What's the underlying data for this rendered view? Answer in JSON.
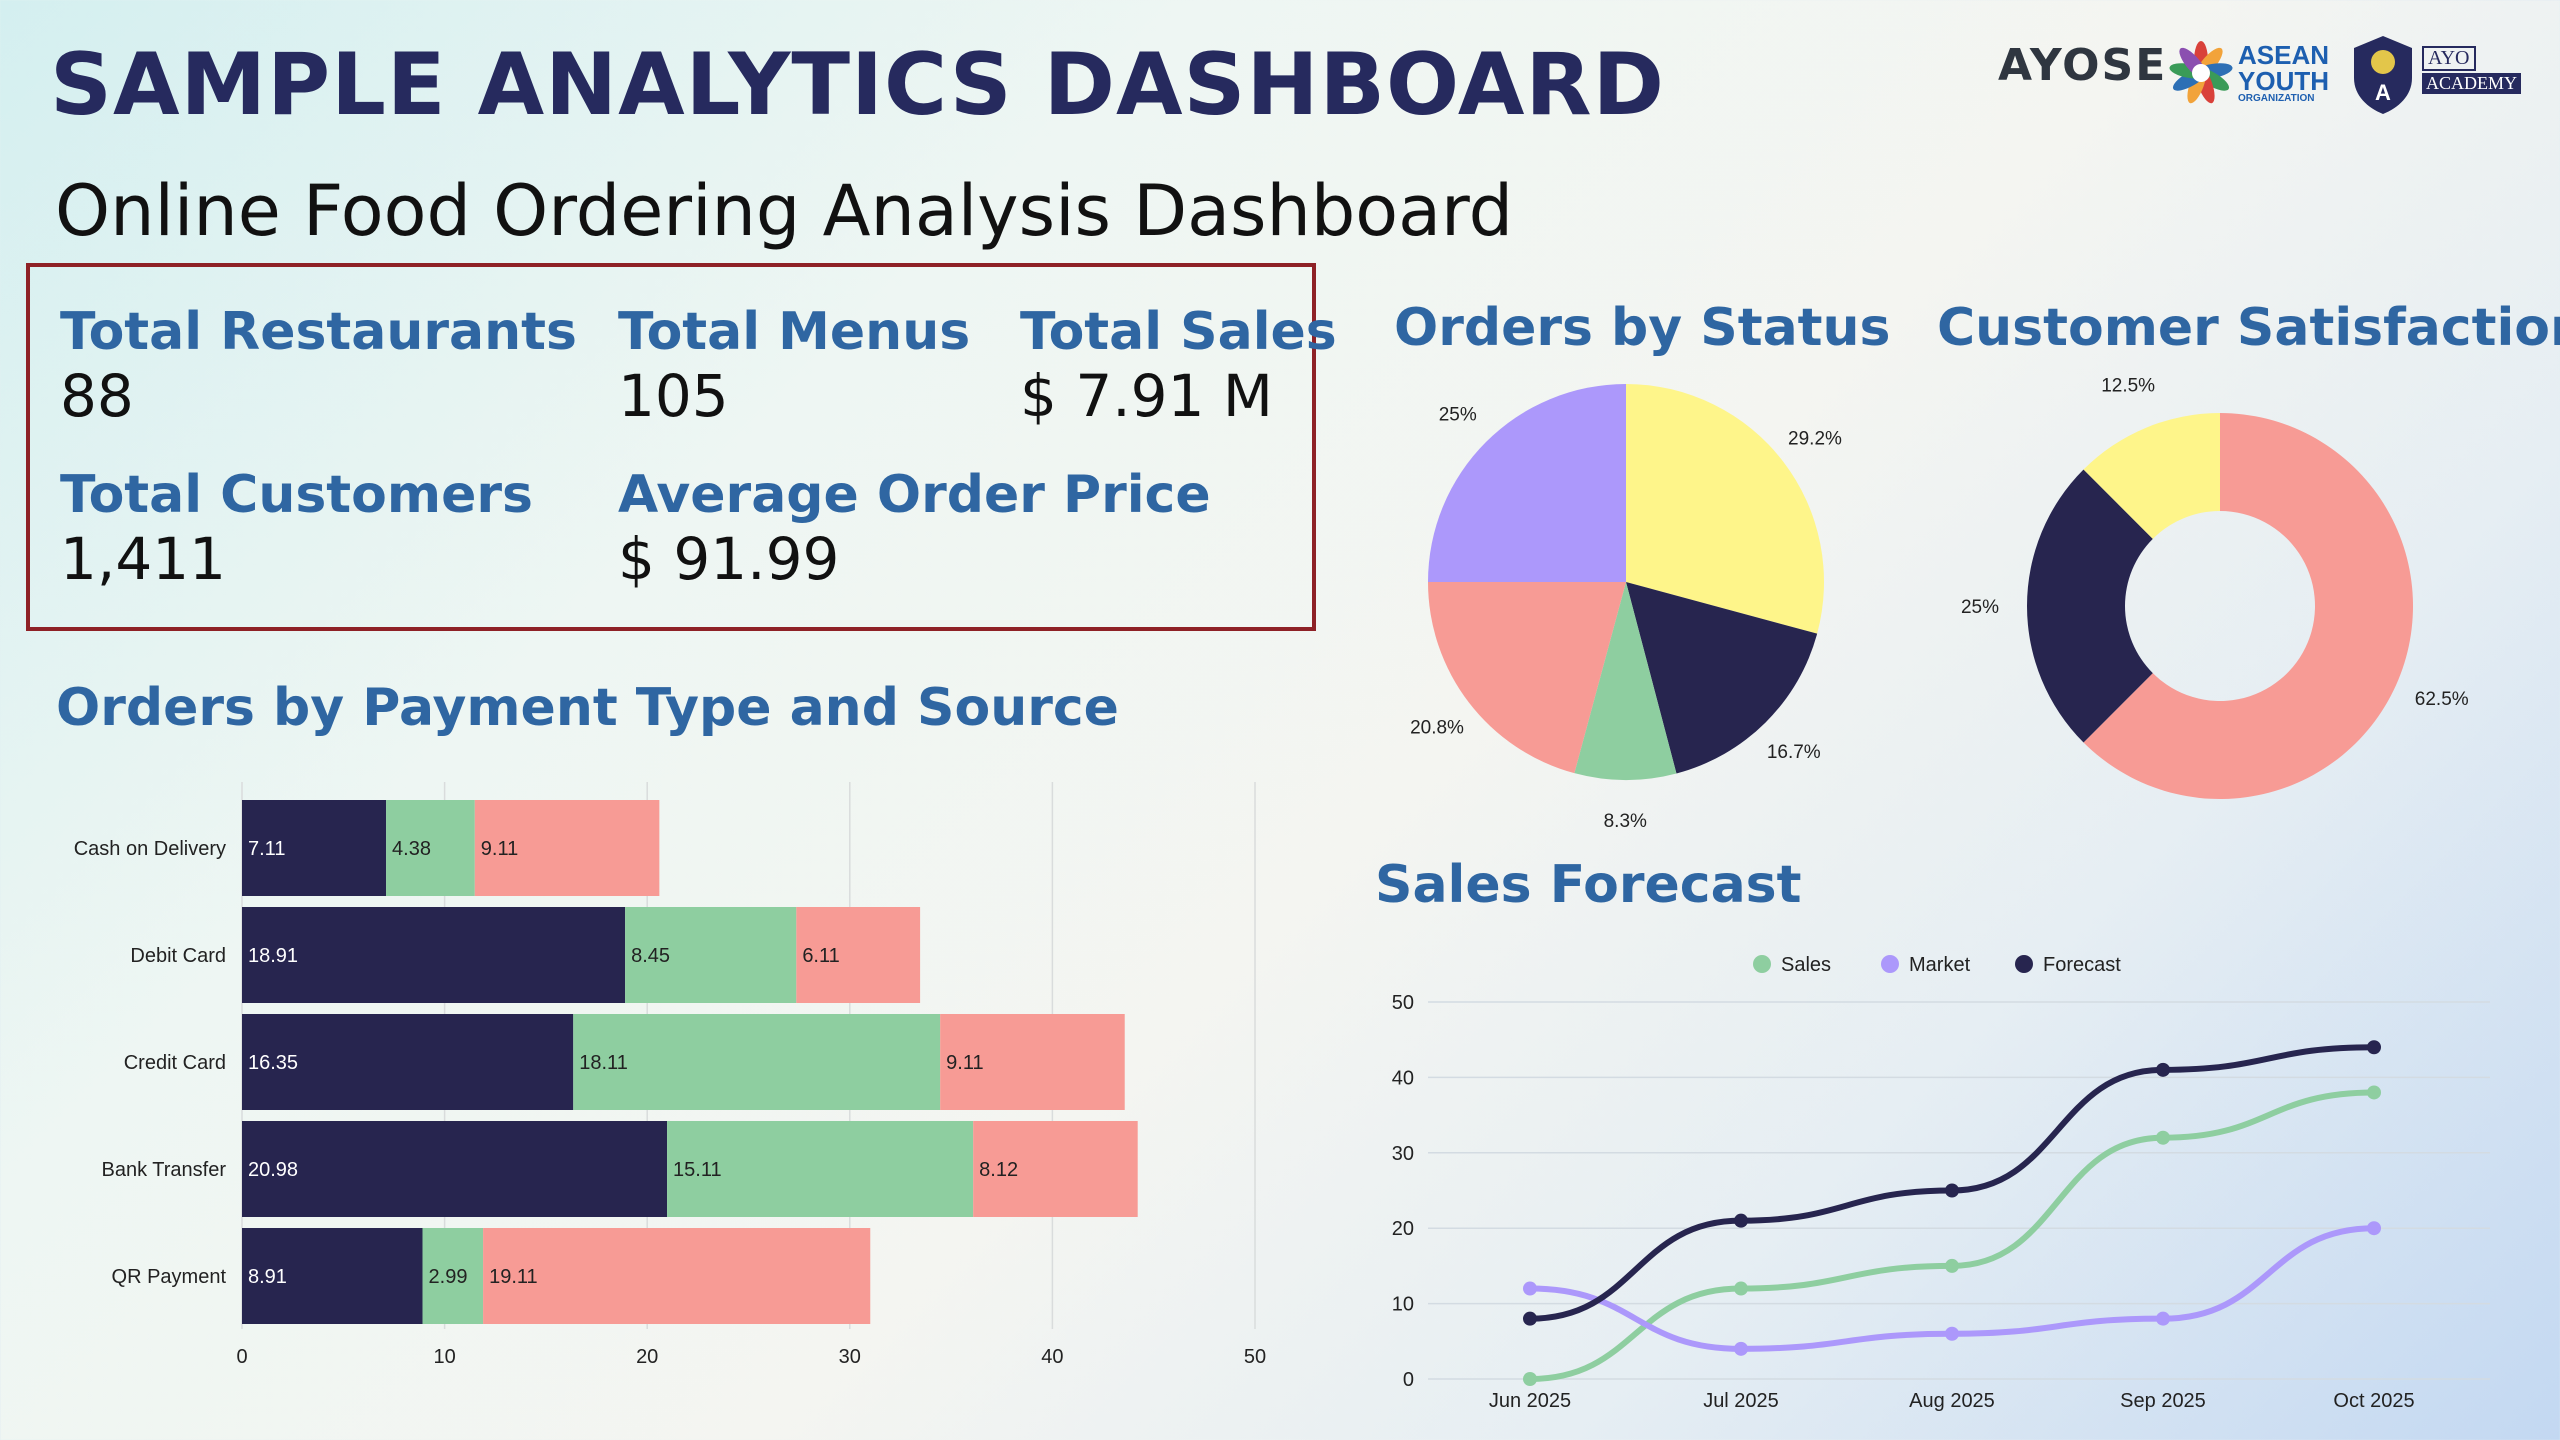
{
  "header": {
    "title": "SAMPLE ANALYTICS DASHBOARD",
    "subtitle": "Online Food Ordering Analysis Dashboard",
    "logos": {
      "ayose": "AYOSE",
      "asean_line1": "ASEAN",
      "asean_line2": "YOUTH",
      "asean_line3": "ORGANIZATION",
      "ayo_line1": "AYO",
      "ayo_line2": "ACADEMY"
    }
  },
  "kpis": [
    {
      "label": "Total Restaurants",
      "value": "88"
    },
    {
      "label": "Total Menus",
      "value": "105"
    },
    {
      "label": "Total Sales",
      "value": "$ 7.91 M"
    },
    {
      "label": "Total Customers",
      "value": "1,411"
    },
    {
      "label": "Average Order Price",
      "value": "$ 91.99"
    }
  ],
  "sections": {
    "payment": "Orders by Payment Type and Source",
    "status": "Orders by Status",
    "satisfaction": "Customer Satisfaction",
    "forecast": "Sales Forecast"
  },
  "colors": {
    "navy": "#27254f",
    "green": "#8ecea0",
    "salmon": "#f79b95",
    "yellow": "#fef58a",
    "purple": "#ac98fb"
  },
  "chart_data": [
    {
      "type": "bar",
      "orientation": "horizontal",
      "stacked": true,
      "title": "Orders by Payment Type and Source",
      "categories": [
        "Cash on Delivery",
        "Debit Card",
        "Credit Card",
        "Bank Transfer",
        "QR Payment"
      ],
      "series": [
        {
          "values": [
            7.11,
            18.91,
            16.35,
            20.98,
            8.91
          ],
          "color": "#27254f"
        },
        {
          "values": [
            4.38,
            8.45,
            18.11,
            15.11,
            2.99
          ],
          "color": "#8ecea0"
        },
        {
          "values": [
            9.11,
            6.11,
            9.11,
            8.12,
            19.11
          ],
          "color": "#f79b95"
        }
      ],
      "xlim": [
        0,
        50
      ],
      "xticks": [
        "0",
        "10",
        "20",
        "30",
        "40",
        "50"
      ],
      "grid": true
    },
    {
      "type": "pie",
      "title": "Orders by Status",
      "values": [
        29.2,
        16.7,
        8.3,
        20.8,
        25
      ],
      "labels": [
        "29.2%",
        "16.7%",
        "8.3%",
        "20.8%",
        "25%"
      ],
      "colors": [
        "#fef58a",
        "#27254f",
        "#8ecea0",
        "#f79b95",
        "#ac98fb"
      ]
    },
    {
      "type": "pie",
      "donut": true,
      "title": "Customer Satisfaction",
      "values": [
        62.5,
        25,
        12.5
      ],
      "labels": [
        "62.5%",
        "25%",
        "12.5%"
      ],
      "colors": [
        "#f79b95",
        "#27254f",
        "#fef58a"
      ]
    },
    {
      "type": "line",
      "title": "Sales Forecast",
      "x": [
        "Jun 2025",
        "Jul 2025",
        "Aug 2025",
        "Sep 2025",
        "Oct 2025"
      ],
      "series": [
        {
          "name": "Sales",
          "values": [
            0,
            12,
            15,
            32,
            38
          ],
          "color": "#8ecea0"
        },
        {
          "name": "Market",
          "values": [
            12,
            4,
            6,
            8,
            20
          ],
          "color": "#ac98fb"
        },
        {
          "name": "Forecast",
          "values": [
            8,
            21,
            25,
            41,
            44
          ],
          "color": "#27254f"
        }
      ],
      "ylim": [
        0,
        50
      ],
      "yticks": [
        "0",
        "10",
        "20",
        "30",
        "40",
        "50"
      ],
      "legend": "top-center",
      "grid": true
    }
  ]
}
